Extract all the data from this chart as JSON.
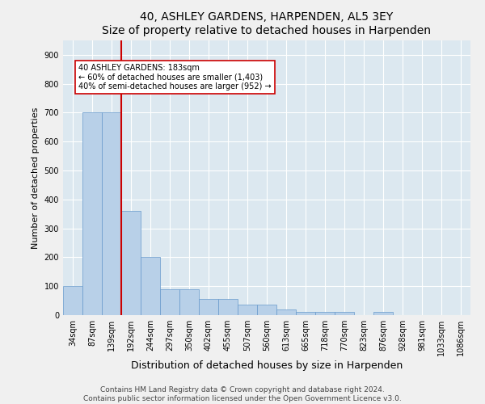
{
  "title": "40, ASHLEY GARDENS, HARPENDEN, AL5 3EY",
  "subtitle": "Size of property relative to detached houses in Harpenden",
  "xlabel": "Distribution of detached houses by size in Harpenden",
  "ylabel": "Number of detached properties",
  "bin_labels": [
    "34sqm",
    "87sqm",
    "139sqm",
    "192sqm",
    "244sqm",
    "297sqm",
    "350sqm",
    "402sqm",
    "455sqm",
    "507sqm",
    "560sqm",
    "613sqm",
    "665sqm",
    "718sqm",
    "770sqm",
    "823sqm",
    "876sqm",
    "928sqm",
    "981sqm",
    "1033sqm",
    "1086sqm"
  ],
  "bar_heights": [
    100,
    700,
    700,
    360,
    200,
    90,
    90,
    55,
    55,
    35,
    35,
    20,
    10,
    10,
    10,
    0,
    10,
    0,
    0,
    0,
    0
  ],
  "bar_color": "#b8d0e8",
  "bar_edge_color": "#6699cc",
  "vline_color": "#cc0000",
  "annotation_text": "40 ASHLEY GARDENS: 183sqm\n← 60% of detached houses are smaller (1,403)\n40% of semi-detached houses are larger (952) →",
  "annotation_box_color": "#ffffff",
  "annotation_box_edge_color": "#cc0000",
  "ylim": [
    0,
    950
  ],
  "yticks": [
    0,
    100,
    200,
    300,
    400,
    500,
    600,
    700,
    800,
    900
  ],
  "footer": "Contains HM Land Registry data © Crown copyright and database right 2024.\nContains public sector information licensed under the Open Government Licence v3.0.",
  "background_color": "#dce8f0",
  "fig_background": "#f0f0f0",
  "title_fontsize": 10,
  "axis_label_fontsize": 8,
  "tick_fontsize": 7,
  "footer_fontsize": 6.5
}
